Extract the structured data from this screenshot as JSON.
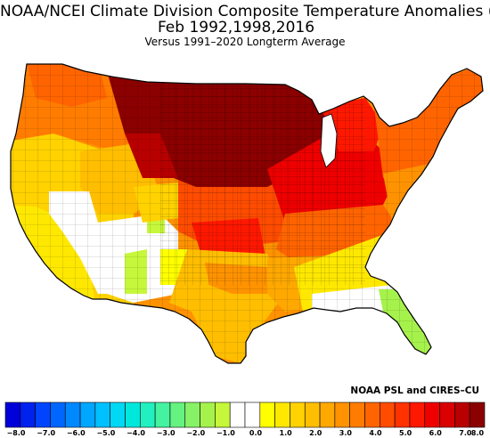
{
  "title": {
    "line1": "NOAA/NCEI Climate Division Composite Temperature Anomalies (F)",
    "line2": "Feb  1992,1998,2016",
    "line3": "Versus 1991–2020 Longterm Average"
  },
  "credit": "NOAA PSL and CIRES–CU",
  "map_data": {
    "type": "choropleth",
    "region": "Contiguous United States climate divisions",
    "variable": "Composite temperature anomaly (F)",
    "pattern": [
      {
        "area": "Northern Plains / Upper Midwest",
        "anomaly_range": [
          7.0,
          8.0
        ]
      },
      {
        "area": "Great Lakes / Central Plains",
        "anomaly_range": [
          5.0,
          6.5
        ]
      },
      {
        "area": "Northeast",
        "anomaly_range": [
          4.0,
          5.5
        ]
      },
      {
        "area": "Pacific Northwest / Northern Rockies",
        "anomaly_range": [
          4.0,
          6.0
        ]
      },
      {
        "area": "California / Great Basin",
        "anomaly_range": [
          1.5,
          3.0
        ]
      },
      {
        "area": "Southwest / Four Corners",
        "anomaly_range": [
          -1.5,
          1.0
        ]
      },
      {
        "area": "Texas / Southern Plains",
        "anomaly_range": [
          2.0,
          3.5
        ]
      },
      {
        "area": "Southeast",
        "anomaly_range": [
          0.5,
          2.0
        ]
      },
      {
        "area": "Florida",
        "anomaly_range": [
          -1.5,
          -0.5
        ]
      }
    ]
  },
  "colorbar": {
    "ticks": [
      "-8.0",
      "-7.0",
      "-6.0",
      "-5.0",
      "-4.0",
      "-3.0",
      "-2.0",
      "-1.0",
      "0.0",
      "1.0",
      "2.0",
      "3.0",
      "4.0",
      "5.0",
      "6.0",
      "7.0",
      "8.0"
    ],
    "bins": [
      {
        "range": [
          -8.0,
          -7.5
        ],
        "color": "#0000d9"
      },
      {
        "range": [
          -7.5,
          -7.0
        ],
        "color": "#0022ee"
      },
      {
        "range": [
          -7.0,
          -6.5
        ],
        "color": "#0044ff"
      },
      {
        "range": [
          -6.5,
          -6.0
        ],
        "color": "#0066ff"
      },
      {
        "range": [
          -6.0,
          -5.5
        ],
        "color": "#0088ff"
      },
      {
        "range": [
          -5.5,
          -5.0
        ],
        "color": "#00a6ff"
      },
      {
        "range": [
          -5.0,
          -4.5
        ],
        "color": "#00c0ff"
      },
      {
        "range": [
          -4.5,
          -4.0
        ],
        "color": "#00d8f4"
      },
      {
        "range": [
          -4.0,
          -3.5
        ],
        "color": "#00e8dc"
      },
      {
        "range": [
          -3.5,
          -3.0
        ],
        "color": "#22f0c0"
      },
      {
        "range": [
          -3.0,
          -2.5
        ],
        "color": "#44f2a0"
      },
      {
        "range": [
          -2.5,
          -2.0
        ],
        "color": "#66f280"
      },
      {
        "range": [
          -2.0,
          -1.5
        ],
        "color": "#88f266"
      },
      {
        "range": [
          -1.5,
          -1.0
        ],
        "color": "#a6f24c"
      },
      {
        "range": [
          -1.0,
          -0.5
        ],
        "color": "#c6f73a"
      },
      {
        "range": [
          -0.5,
          0.0
        ],
        "color": "#ffffff"
      },
      {
        "range": [
          0.0,
          0.5
        ],
        "color": "#ffffff"
      },
      {
        "range": [
          0.5,
          1.0
        ],
        "color": "#ffff00"
      },
      {
        "range": [
          1.0,
          1.5
        ],
        "color": "#ffe800"
      },
      {
        "range": [
          1.5,
          2.0
        ],
        "color": "#ffd200"
      },
      {
        "range": [
          2.0,
          2.5
        ],
        "color": "#ffbe00"
      },
      {
        "range": [
          2.5,
          3.0
        ],
        "color": "#ffa800"
      },
      {
        "range": [
          3.0,
          3.5
        ],
        "color": "#ff9200"
      },
      {
        "range": [
          3.5,
          4.0
        ],
        "color": "#ff7c00"
      },
      {
        "range": [
          4.0,
          4.5
        ],
        "color": "#ff6400"
      },
      {
        "range": [
          4.5,
          5.0
        ],
        "color": "#ff4c00"
      },
      {
        "range": [
          5.0,
          5.5
        ],
        "color": "#ff3200"
      },
      {
        "range": [
          5.5,
          6.0
        ],
        "color": "#ff1800"
      },
      {
        "range": [
          6.0,
          6.5
        ],
        "color": "#ee0000"
      },
      {
        "range": [
          6.5,
          7.0
        ],
        "color": "#d80000"
      },
      {
        "range": [
          7.0,
          7.5
        ],
        "color": "#b80000"
      },
      {
        "range": [
          7.5,
          8.0
        ],
        "color": "#8b0000"
      }
    ]
  }
}
